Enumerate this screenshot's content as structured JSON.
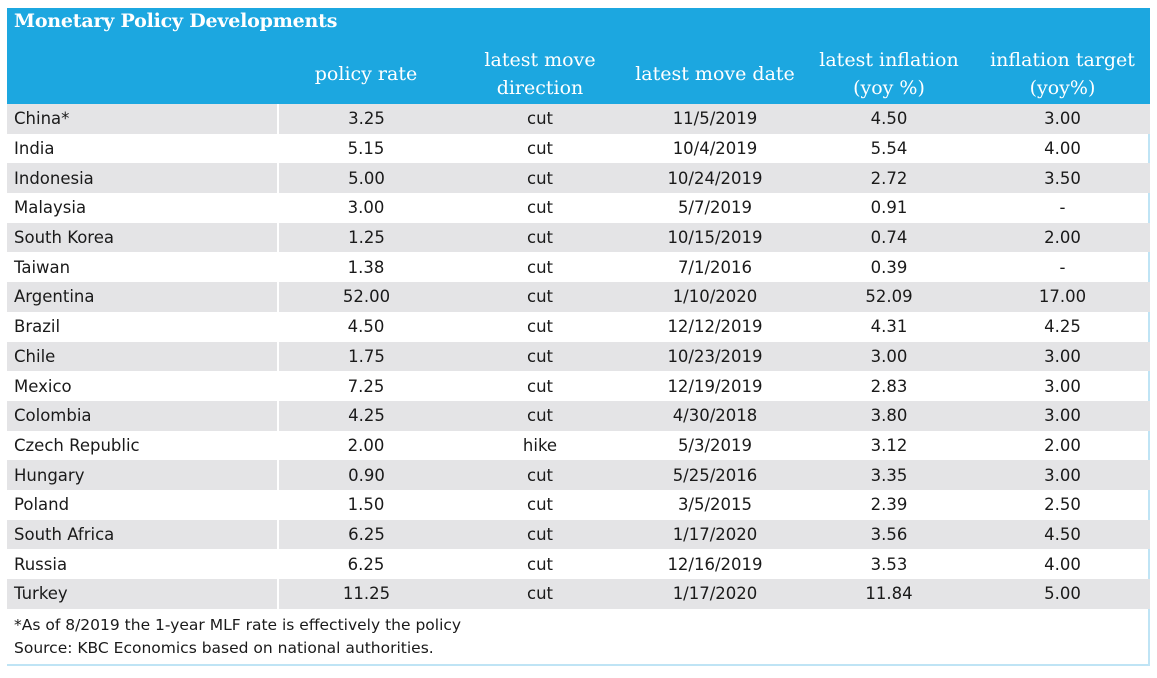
{
  "title": "Monetary Policy Developments",
  "columns": [
    "policy rate",
    "latest move\ndirection",
    "latest move date",
    "latest inflation\n(yoy %)",
    "inflation target\n(yoy%)"
  ],
  "rows": [
    [
      "China*",
      "3.25",
      "cut",
      "11/5/2019",
      "4.50",
      "3.00"
    ],
    [
      "India",
      "5.15",
      "cut",
      "10/4/2019",
      "5.54",
      "4.00"
    ],
    [
      "Indonesia",
      "5.00",
      "cut",
      "10/24/2019",
      "2.72",
      "3.50"
    ],
    [
      "Malaysia",
      "3.00",
      "cut",
      "5/7/2019",
      "0.91",
      "-"
    ],
    [
      "South Korea",
      "1.25",
      "cut",
      "10/15/2019",
      "0.74",
      "2.00"
    ],
    [
      "Taiwan",
      "1.38",
      "cut",
      "7/1/2016",
      "0.39",
      "-"
    ],
    [
      "Argentina",
      "52.00",
      "cut",
      "1/10/2020",
      "52.09",
      "17.00"
    ],
    [
      "Brazil",
      "4.50",
      "cut",
      "12/12/2019",
      "4.31",
      "4.25"
    ],
    [
      "Chile",
      "1.75",
      "cut",
      "10/23/2019",
      "3.00",
      "3.00"
    ],
    [
      "Mexico",
      "7.25",
      "cut",
      "12/19/2019",
      "2.83",
      "3.00"
    ],
    [
      "Colombia",
      "4.25",
      "cut",
      "4/30/2018",
      "3.80",
      "3.00"
    ],
    [
      "Czech Republic",
      "2.00",
      "hike",
      "5/3/2019",
      "3.12",
      "2.00"
    ],
    [
      "Hungary",
      "0.90",
      "cut",
      "5/25/2016",
      "3.35",
      "3.00"
    ],
    [
      "Poland",
      "1.50",
      "cut",
      "3/5/2015",
      "2.39",
      "2.50"
    ],
    [
      "South Africa",
      "6.25",
      "cut",
      "1/17/2020",
      "3.56",
      "4.50"
    ],
    [
      "Russia",
      "6.25",
      "cut",
      "12/16/2019",
      "3.53",
      "4.00"
    ],
    [
      "Turkey",
      "11.25",
      "cut",
      "1/17/2020",
      "11.84",
      "5.00"
    ]
  ],
  "footnotes": [
    "*As of 8/2019 the 1-year MLF rate is effectively the policy",
    "Source: KBC Economics based on national authorities."
  ],
  "colors": {
    "header_bg": "#1ca7e0",
    "header_text": "#ffffff",
    "row_shade": "#e4e4e6"
  }
}
